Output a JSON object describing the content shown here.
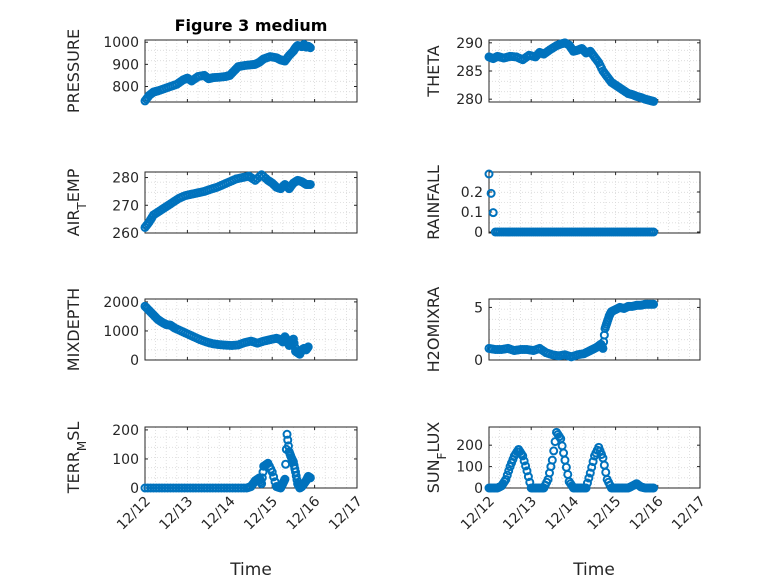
{
  "figure": {
    "title": "Figure 3 medium"
  },
  "colors": {
    "marker": "#0072bd",
    "axis": "#262626",
    "grid": "#d9d9d9"
  },
  "chart_data": [
    {
      "type": "scatter",
      "ylabel": "PRESSURE",
      "yticks": [
        800,
        900,
        1000
      ],
      "ylim": [
        730,
        1010
      ],
      "x": [
        0,
        0.1,
        0.2,
        0.3,
        0.45,
        0.6,
        0.75,
        0.9,
        1.0,
        1.1,
        1.25,
        1.4,
        1.5,
        1.6,
        1.75,
        1.9,
        2.0,
        2.1,
        2.2,
        2.35,
        2.5,
        2.6,
        2.7,
        2.8,
        2.95,
        3.1,
        3.2,
        3.3,
        3.4,
        3.5,
        3.55,
        3.6,
        3.7,
        3.75,
        3.8,
        3.85,
        3.9
      ],
      "y": [
        735,
        760,
        775,
        780,
        790,
        800,
        810,
        830,
        838,
        825,
        845,
        850,
        835,
        840,
        842,
        845,
        850,
        870,
        890,
        895,
        898,
        900,
        910,
        925,
        935,
        930,
        920,
        915,
        940,
        960,
        975,
        985,
        980,
        990,
        978,
        982,
        975
      ]
    },
    {
      "type": "scatter",
      "ylabel": "THETA",
      "yticks": [
        280,
        285,
        290
      ],
      "ylim": [
        279.5,
        290.5
      ],
      "x": [
        0,
        0.1,
        0.2,
        0.35,
        0.5,
        0.65,
        0.8,
        0.95,
        1.1,
        1.2,
        1.3,
        1.45,
        1.6,
        1.7,
        1.8,
        1.9,
        2.0,
        2.1,
        2.2,
        2.3,
        2.4,
        2.5,
        2.6,
        2.7,
        2.8,
        2.9,
        3.0,
        3.1,
        3.2,
        3.3,
        3.4,
        3.5,
        3.6,
        3.7,
        3.8,
        3.9
      ],
      "y": [
        287.5,
        287.2,
        287.6,
        287.3,
        287.6,
        287.5,
        287.0,
        287.8,
        287.5,
        288.3,
        288.0,
        288.8,
        289.5,
        289.8,
        290.0,
        289.6,
        288.5,
        288.7,
        289.0,
        288.2,
        288.5,
        287.5,
        286.5,
        285.0,
        284.0,
        283.0,
        282.5,
        282.0,
        281.5,
        281.0,
        280.8,
        280.5,
        280.3,
        280.0,
        279.8,
        279.6
      ]
    },
    {
      "type": "scatter",
      "ylabel": "AIR_TEMP",
      "yticks": [
        260,
        270,
        280
      ],
      "ylim": [
        260,
        282
      ],
      "x": [
        0,
        0.1,
        0.2,
        0.35,
        0.5,
        0.65,
        0.8,
        0.95,
        1.1,
        1.25,
        1.4,
        1.55,
        1.7,
        1.85,
        2.0,
        2.15,
        2.3,
        2.45,
        2.6,
        2.75,
        2.9,
        3.0,
        3.1,
        3.2,
        3.3,
        3.4,
        3.5,
        3.6,
        3.7,
        3.8,
        3.9
      ],
      "y": [
        262,
        264,
        266.5,
        268,
        269.5,
        271,
        272.5,
        273.5,
        274,
        274.5,
        275,
        275.8,
        276.5,
        277.5,
        278.5,
        279.5,
        280,
        280.5,
        279,
        281,
        279,
        278,
        276.5,
        276,
        277.5,
        276,
        278,
        279,
        278.5,
        277.5,
        277.5
      ]
    },
    {
      "type": "scatter",
      "ylabel": "RAINFALL",
      "yticks": [
        0,
        0.1,
        0.2
      ],
      "ylim": [
        -0.005,
        0.3
      ],
      "x": [
        0,
        0.15,
        0.3,
        0.45,
        0.6,
        0.75,
        0.9,
        1.05,
        1.2,
        1.35,
        1.5,
        1.65,
        1.8,
        1.95,
        2.1,
        2.25,
        2.4,
        2.55,
        2.7,
        2.85,
        3.0,
        3.15,
        3.3,
        3.45,
        3.6,
        3.75,
        3.9
      ],
      "y": [
        0.29,
        0,
        0,
        0,
        0,
        0,
        0,
        0,
        0,
        0,
        0,
        0,
        0,
        0,
        0,
        0,
        0,
        0,
        0,
        0,
        0,
        0,
        0,
        0,
        0,
        0,
        0
      ]
    },
    {
      "type": "scatter",
      "ylabel": "MIXDEPTH",
      "yticks": [
        0,
        1000,
        2000
      ],
      "ylim": [
        0,
        2100
      ],
      "x": [
        0,
        0.1,
        0.2,
        0.3,
        0.4,
        0.5,
        0.6,
        0.7,
        0.85,
        1.0,
        1.15,
        1.3,
        1.45,
        1.6,
        1.75,
        1.9,
        2.05,
        2.2,
        2.35,
        2.5,
        2.65,
        2.8,
        2.95,
        3.1,
        3.2,
        3.25,
        3.3,
        3.35,
        3.4,
        3.45,
        3.5,
        3.55,
        3.6,
        3.65,
        3.7,
        3.75,
        3.8,
        3.85
      ],
      "y": [
        1850,
        1700,
        1550,
        1400,
        1300,
        1220,
        1200,
        1100,
        1000,
        900,
        800,
        700,
        620,
        560,
        530,
        510,
        500,
        520,
        600,
        650,
        580,
        650,
        700,
        750,
        700,
        620,
        800,
        680,
        500,
        550,
        720,
        300,
        250,
        200,
        350,
        400,
        350,
        450
      ]
    },
    {
      "type": "scatter",
      "ylabel": "H2OMIXRA",
      "yticks": [
        0,
        5
      ],
      "ylim": [
        0,
        5.8
      ],
      "x": [
        0,
        0.15,
        0.3,
        0.45,
        0.6,
        0.75,
        0.9,
        1.05,
        1.2,
        1.35,
        1.5,
        1.65,
        1.8,
        1.95,
        2.1,
        2.25,
        2.35,
        2.45,
        2.55,
        2.65,
        2.7,
        2.75,
        2.8,
        2.85,
        2.9,
        3.0,
        3.1,
        3.2,
        3.3,
        3.4,
        3.5,
        3.6,
        3.7,
        3.8,
        3.9
      ],
      "y": [
        1.1,
        1.0,
        1.0,
        1.1,
        0.9,
        1.0,
        1.0,
        0.9,
        1.1,
        0.7,
        0.5,
        0.4,
        0.5,
        0.3,
        0.5,
        0.6,
        0.8,
        1.0,
        1.2,
        1.5,
        1.1,
        3.0,
        3.6,
        4.2,
        4.6,
        4.8,
        5.0,
        4.9,
        5.1,
        5.1,
        5.2,
        5.2,
        5.3,
        5.3,
        5.3
      ]
    },
    {
      "type": "scatter",
      "ylabel": "TERR_MSL",
      "yticks": [
        0,
        100,
        200
      ],
      "ylim": [
        0,
        210
      ],
      "x": [
        0,
        0.2,
        0.4,
        0.6,
        0.8,
        1.0,
        1.2,
        1.4,
        1.6,
        1.8,
        2.0,
        2.2,
        2.4,
        2.5,
        2.6,
        2.7,
        2.75,
        2.8,
        2.9,
        3.0,
        3.1,
        3.2,
        3.25,
        3.3,
        3.35,
        3.4,
        3.45,
        3.5,
        3.55,
        3.6,
        3.65,
        3.7,
        3.75,
        3.8,
        3.85,
        3.9
      ],
      "y": [
        0,
        0,
        0,
        0,
        0,
        0,
        0,
        0,
        0,
        0,
        0,
        0,
        0,
        5,
        25,
        35,
        15,
        75,
        85,
        55,
        5,
        0,
        15,
        30,
        185,
        125,
        105,
        90,
        55,
        15,
        0,
        5,
        15,
        25,
        40,
        35
      ]
    },
    {
      "type": "scatter",
      "ylabel": "SUN_FLUX",
      "yticks": [
        0,
        100,
        200
      ],
      "ylim": [
        0,
        285
      ],
      "x": [
        0,
        0.1,
        0.2,
        0.3,
        0.4,
        0.5,
        0.6,
        0.7,
        0.8,
        0.9,
        1.0,
        1.1,
        1.2,
        1.3,
        1.4,
        1.5,
        1.6,
        1.7,
        1.8,
        1.9,
        2.0,
        2.1,
        2.2,
        2.3,
        2.4,
        2.5,
        2.6,
        2.7,
        2.8,
        2.9,
        3.0,
        3.1,
        3.2,
        3.3,
        3.4,
        3.5,
        3.6,
        3.7,
        3.8,
        3.9
      ],
      "y": [
        0,
        0,
        0,
        10,
        40,
        100,
        150,
        180,
        150,
        80,
        0,
        0,
        0,
        0,
        40,
        130,
        260,
        230,
        130,
        30,
        0,
        0,
        0,
        0,
        70,
        150,
        190,
        140,
        40,
        0,
        0,
        0,
        0,
        0,
        10,
        20,
        5,
        0,
        0,
        0
      ]
    }
  ],
  "xaxis": {
    "ticks": [
      "12/12",
      "12/13",
      "12/14",
      "12/15",
      "12/16",
      "12/17"
    ],
    "label": "Time"
  }
}
